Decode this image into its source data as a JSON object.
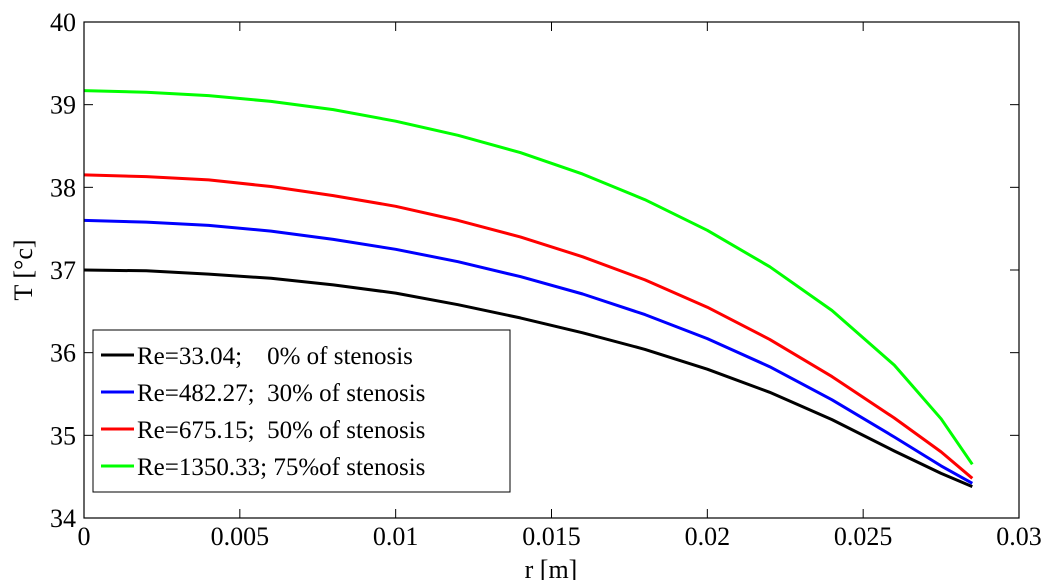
{
  "chart_data": {
    "type": "line",
    "title": "",
    "xlabel": "r [m]",
    "ylabel": "T [°c]",
    "xlim": [
      0,
      0.03
    ],
    "ylim": [
      34,
      40
    ],
    "grid": false,
    "legend_position": "bottom-left",
    "x_ticks": [
      "0",
      "0.005",
      "0.01",
      "0.015",
      "0.02",
      "0.025",
      "0.03"
    ],
    "y_ticks": [
      "34",
      "35",
      "36",
      "37",
      "38",
      "39",
      "40"
    ],
    "series": [
      {
        "name": "Re=33.04;    0% of stenosis",
        "color": "#000000",
        "x": [
          0,
          0.002,
          0.004,
          0.006,
          0.008,
          0.01,
          0.012,
          0.014,
          0.016,
          0.018,
          0.02,
          0.022,
          0.024,
          0.026,
          0.0275,
          0.0285
        ],
        "y": [
          37.0,
          36.99,
          36.95,
          36.9,
          36.82,
          36.72,
          36.58,
          36.42,
          36.24,
          36.04,
          35.8,
          35.52,
          35.19,
          34.81,
          34.54,
          34.38
        ]
      },
      {
        "name": "Re=482.27;  30% of stenosis",
        "color": "#0000ff",
        "x": [
          0,
          0.002,
          0.004,
          0.006,
          0.008,
          0.01,
          0.012,
          0.014,
          0.016,
          0.018,
          0.02,
          0.022,
          0.024,
          0.026,
          0.0275,
          0.0285
        ],
        "y": [
          37.6,
          37.58,
          37.54,
          37.47,
          37.37,
          37.25,
          37.1,
          36.92,
          36.71,
          36.46,
          36.17,
          35.83,
          35.43,
          34.98,
          34.63,
          34.42
        ]
      },
      {
        "name": "Re=675.15;  50% of stenosis",
        "color": "#ff0000",
        "x": [
          0,
          0.002,
          0.004,
          0.006,
          0.008,
          0.01,
          0.012,
          0.014,
          0.016,
          0.018,
          0.02,
          0.022,
          0.024,
          0.026,
          0.0275,
          0.0285
        ],
        "y": [
          38.15,
          38.13,
          38.09,
          38.01,
          37.9,
          37.77,
          37.6,
          37.4,
          37.16,
          36.88,
          36.55,
          36.16,
          35.71,
          35.21,
          34.8,
          34.48
        ]
      },
      {
        "name": "Re=1350.33; 75%of stenosis",
        "color": "#00ff00",
        "x": [
          0,
          0.002,
          0.004,
          0.006,
          0.008,
          0.01,
          0.012,
          0.014,
          0.016,
          0.018,
          0.02,
          0.022,
          0.024,
          0.026,
          0.0275,
          0.0285
        ],
        "y": [
          39.17,
          39.15,
          39.11,
          39.04,
          38.94,
          38.8,
          38.63,
          38.42,
          38.16,
          37.85,
          37.48,
          37.04,
          36.51,
          35.85,
          35.2,
          34.65
        ]
      }
    ]
  }
}
